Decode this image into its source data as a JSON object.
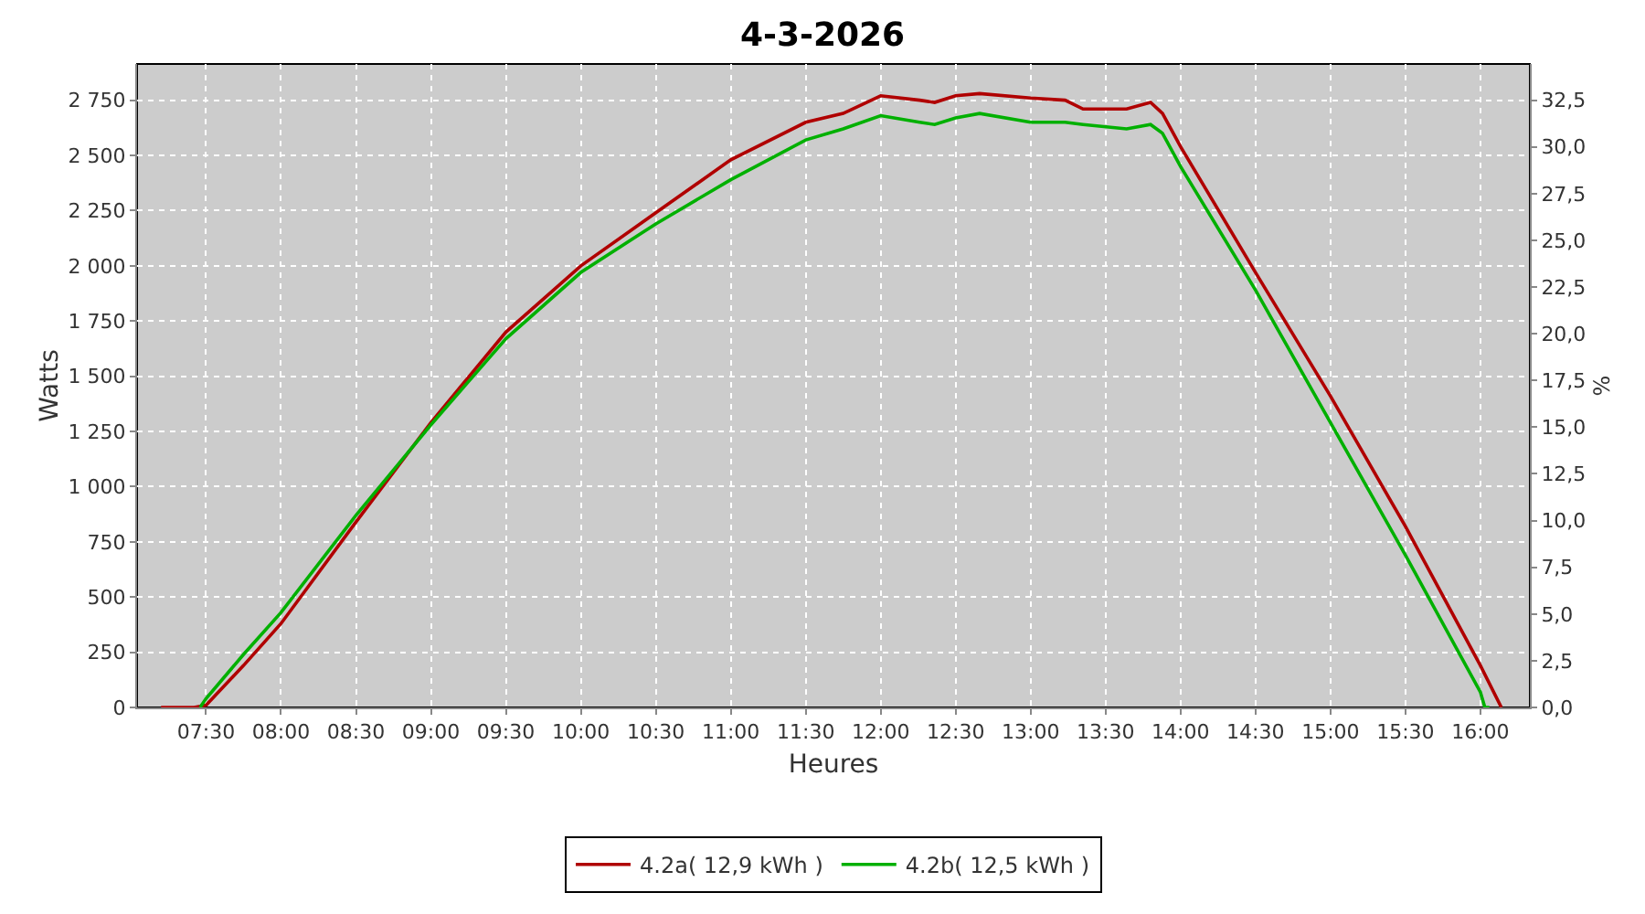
{
  "chart_data": {
    "type": "line",
    "title": "4-3-2026",
    "xlabel": "Heures",
    "ylabel": "Watts",
    "y2label": "%",
    "xlim": [
      7.04,
      16.33
    ],
    "xticks": [
      {
        "value": 7.5,
        "label": "07:30"
      },
      {
        "value": 8,
        "label": "08:00"
      },
      {
        "value": 8.5,
        "label": "08:30"
      },
      {
        "value": 9,
        "label": "09:00"
      },
      {
        "value": 9.5,
        "label": "09:30"
      },
      {
        "value": 10,
        "label": "10:00"
      },
      {
        "value": 10.5,
        "label": "10:30"
      },
      {
        "value": 11,
        "label": "11:00"
      },
      {
        "value": 11.5,
        "label": "11:30"
      },
      {
        "value": 12,
        "label": "12:00"
      },
      {
        "value": 12.5,
        "label": "12:30"
      },
      {
        "value": 13,
        "label": "13:00"
      },
      {
        "value": 13.5,
        "label": "13:30"
      },
      {
        "value": 14,
        "label": "14:00"
      },
      {
        "value": 14.5,
        "label": "14:30"
      },
      {
        "value": 15,
        "label": "15:00"
      },
      {
        "value": 15.5,
        "label": "15:30"
      },
      {
        "value": 16,
        "label": "16:00"
      }
    ],
    "ylim": [
      0,
      2914
    ],
    "yticks": [
      0,
      250,
      500,
      750,
      {
        "value": 1000,
        "label": "1 000"
      },
      {
        "value": 1250,
        "label": "1 250"
      },
      {
        "value": 1500,
        "label": "1 500"
      },
      {
        "value": 1750,
        "label": "1 750"
      },
      {
        "value": 2000,
        "label": "2 000"
      },
      {
        "value": 2250,
        "label": "2 250"
      },
      {
        "value": 2500,
        "label": "2 500"
      },
      {
        "value": 2750,
        "label": "2 750"
      }
    ],
    "y2lim": [
      0,
      34.44
    ],
    "y2ticks": [
      {
        "value": 0,
        "label": "0,0"
      },
      {
        "value": 2.5,
        "label": "2,5"
      },
      {
        "value": 5,
        "label": "5,0"
      },
      {
        "value": 7.5,
        "label": "7,5"
      },
      {
        "value": 10,
        "label": "10,0"
      },
      {
        "value": 12.5,
        "label": "12,5"
      },
      {
        "value": 15,
        "label": "15,0"
      },
      {
        "value": 17.5,
        "label": "17,5"
      },
      {
        "value": 20,
        "label": "20,0"
      },
      {
        "value": 22.5,
        "label": "22,5"
      },
      {
        "value": 25,
        "label": "25,0"
      },
      {
        "value": 27.5,
        "label": "27,5"
      },
      {
        "value": 30,
        "label": "30,0"
      },
      {
        "value": 32.5,
        "label": "32,5"
      }
    ],
    "grid": true,
    "legend": "bottom",
    "marker": "none",
    "line_style": "solid",
    "series": [
      {
        "name": "4.2a( 12,9 kWh )",
        "color": "#b00000",
        "x": [
          7.2,
          7.42,
          7.5,
          7.75,
          8,
          8.5,
          9,
          9.5,
          10,
          10.5,
          11,
          11.5,
          11.75,
          12,
          12.26,
          12.36,
          12.5,
          12.66,
          13,
          13.23,
          13.35,
          13.64,
          13.8,
          13.88,
          14,
          14.5,
          15,
          15.5,
          16,
          16.14
        ],
        "values": [
          0,
          0,
          10,
          190,
          380,
          840,
          1290,
          1700,
          2000,
          2240,
          2480,
          2650,
          2690,
          2770,
          2750,
          2740,
          2770,
          2780,
          2760,
          2750,
          2710,
          2710,
          2740,
          2690,
          2540,
          1970,
          1410,
          820,
          190,
          0
        ]
      },
      {
        "name": "4.2b( 12,5 kWh )",
        "color": "#00b000",
        "x": [
          7.46,
          7.5,
          7.75,
          8,
          8.5,
          9,
          9.5,
          10,
          10.5,
          11,
          11.5,
          11.75,
          12,
          12.26,
          12.36,
          12.5,
          12.66,
          13,
          13.23,
          13.35,
          13.64,
          13.8,
          13.88,
          14,
          14.5,
          15,
          15.5,
          16,
          16.03,
          16.06
        ],
        "values": [
          0,
          40,
          240,
          430,
          870,
          1280,
          1670,
          1970,
          2190,
          2390,
          2570,
          2620,
          2680,
          2650,
          2640,
          2670,
          2690,
          2650,
          2650,
          2640,
          2620,
          2640,
          2600,
          2450,
          1890,
          1290,
          690,
          70,
          0,
          0
        ]
      }
    ]
  }
}
